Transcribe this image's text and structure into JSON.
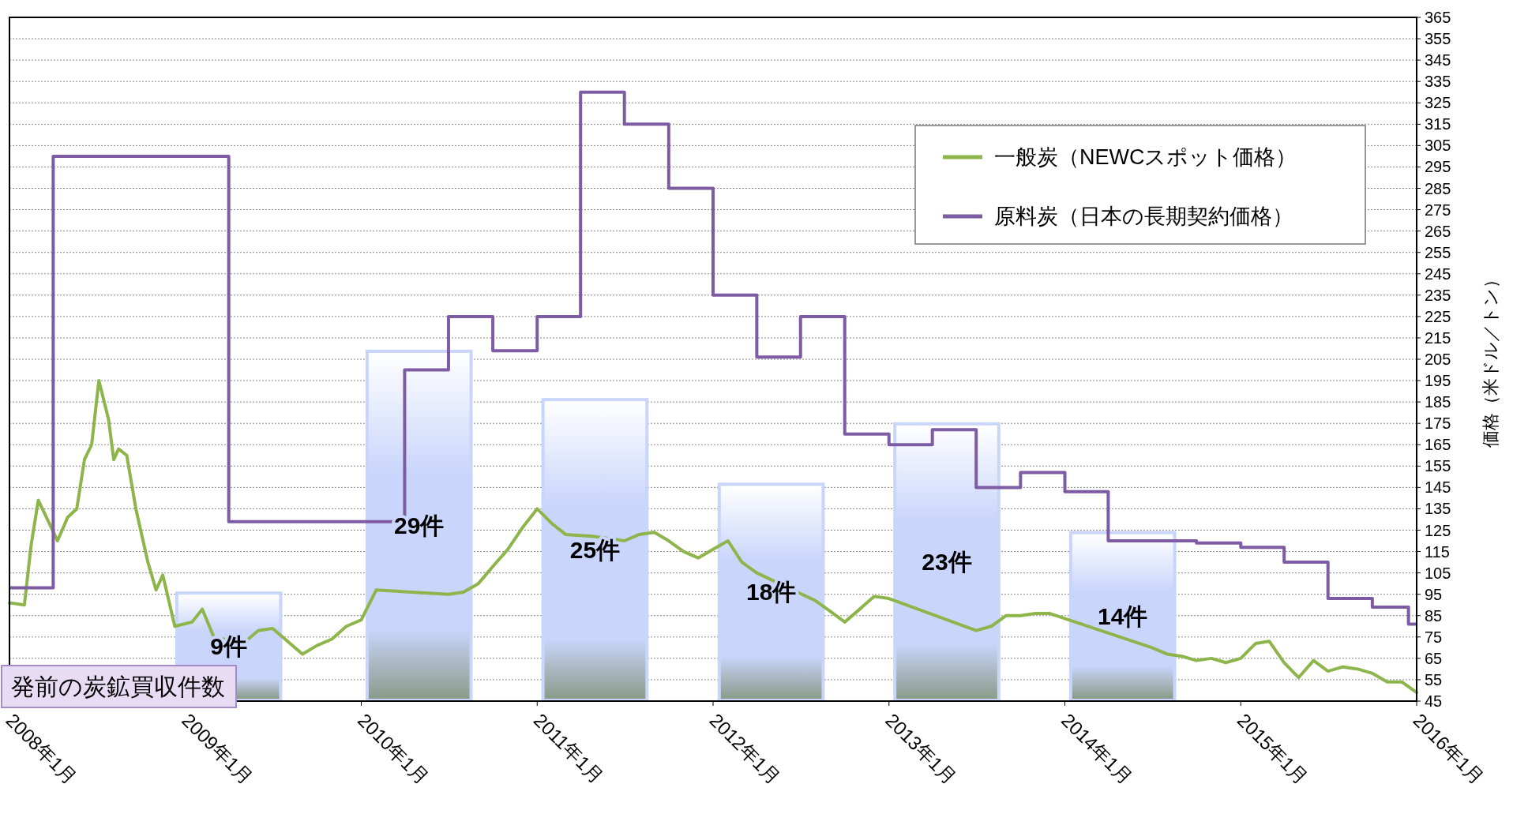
{
  "chart_data": {
    "type": "line",
    "ylabel": "価格（米ドル／トン）",
    "xlim": [
      "2008-01",
      "2016-01"
    ],
    "xticks": [
      {
        "value": "2008-01",
        "label": "2008年1月"
      },
      {
        "value": "2009-01",
        "label": "2009年1月"
      },
      {
        "value": "2010-01",
        "label": "2010年1月"
      },
      {
        "value": "2011-01",
        "label": "2011年1月"
      },
      {
        "value": "2012-01",
        "label": "2012年1月"
      },
      {
        "value": "2013-01",
        "label": "2013年1月"
      },
      {
        "value": "2014-01",
        "label": "2014年1月"
      },
      {
        "value": "2015-01",
        "label": "2015年1月"
      },
      {
        "value": "2016-01",
        "label": "2016年1月"
      }
    ],
    "ylim": [
      45,
      365
    ],
    "yticks": [
      45,
      55,
      65,
      75,
      85,
      95,
      105,
      115,
      125,
      135,
      145,
      155,
      165,
      175,
      185,
      195,
      205,
      215,
      225,
      235,
      245,
      255,
      265,
      275,
      285,
      295,
      305,
      315,
      325,
      335,
      345,
      355,
      365
    ],
    "grid": "y",
    "legend": "top right",
    "annotations": [
      "発前の炭鉱買収件数"
    ],
    "series": [
      {
        "type": "bar",
        "axis": "y2",
        "color": "#c9d5fb",
        "x": [
          "2009-04",
          "2010-05",
          "2011-05",
          "2012-05",
          "2013-05",
          "2014-05"
        ],
        "values": [
          9,
          29,
          25,
          18,
          23,
          14
        ],
        "value_labels": [
          "9件",
          "29件",
          "25件",
          "18件",
          "23件",
          "14件"
        ]
      },
      {
        "name": "一般炭（NEWCスポット価格）",
        "color": "#8db54b",
        "x": [
          "2008-01-01",
          "2008-02-01",
          "2008-02-15",
          "2008-03-01",
          "2008-03-20",
          "2008-04-10",
          "2008-05-01",
          "2008-05-20",
          "2008-06-05",
          "2008-06-20",
          "2008-07-05",
          "2008-07-25",
          "2008-08-05",
          "2008-08-15",
          "2008-09-01",
          "2008-09-20",
          "2008-10-15",
          "2008-11-01",
          "2008-11-15",
          "2008-12-10",
          "2009-01-15",
          "2009-02-05",
          "2009-03-01",
          "2009-05-01",
          "2009-06-01",
          "2009-07-01",
          "2009-08-01",
          "2009-09-01",
          "2009-10-01",
          "2009-11-01",
          "2009-12-01",
          "2010-01-01",
          "2010-02-01",
          "2010-07-01",
          "2010-08-01",
          "2010-09-01",
          "2010-10-01",
          "2010-11-01",
          "2010-12-01",
          "2011-01-01",
          "2011-02-01",
          "2011-03-01",
          "2011-05-01",
          "2011-07-01",
          "2011-08-01",
          "2011-09-01",
          "2011-10-01",
          "2011-11-01",
          "2011-12-01",
          "2012-01-01",
          "2012-02-01",
          "2012-03-01",
          "2012-04-01",
          "2012-08-01",
          "2012-09-01",
          "2012-10-01",
          "2012-11-01",
          "2012-12-01",
          "2013-01-01",
          "2013-07-01",
          "2013-08-01",
          "2013-09-01",
          "2013-10-01",
          "2013-11-01",
          "2013-12-01",
          "2014-07-01",
          "2014-08-01",
          "2014-09-01",
          "2014-10-01",
          "2014-11-01",
          "2014-12-01",
          "2015-01-01",
          "2015-02-01",
          "2015-03-01",
          "2015-04-01",
          "2015-05-01",
          "2015-06-01",
          "2015-07-01",
          "2015-08-01",
          "2015-09-01",
          "2015-10-01",
          "2015-11-01",
          "2015-12-01",
          "2016-01-01"
        ],
        "values": [
          91,
          90,
          118,
          139,
          130,
          120,
          131,
          135,
          158,
          165,
          195,
          177,
          158,
          163,
          160,
          135,
          110,
          97,
          104,
          80,
          82,
          88,
          75,
          72,
          78,
          79,
          73,
          67,
          71,
          74,
          80,
          83,
          97,
          95,
          96,
          100,
          108,
          116,
          126,
          135,
          128,
          123,
          122,
          120,
          123,
          124,
          120,
          115,
          112,
          116,
          120,
          110,
          105,
          92,
          87,
          82,
          88,
          94,
          93,
          78,
          80,
          85,
          85,
          86,
          86,
          70,
          67,
          66,
          64,
          65,
          63,
          65,
          72,
          73,
          63,
          56,
          64,
          59,
          61,
          60,
          58,
          54,
          54,
          49
        ]
      },
      {
        "type": "step",
        "name": "原料炭（日本の長期契約価格）",
        "color": "#7d5ca3",
        "x": [
          "2008-01",
          "2008-04",
          "2009-04",
          "2010-04",
          "2010-07",
          "2010-10",
          "2011-01",
          "2011-04",
          "2011-07",
          "2011-10",
          "2012-01",
          "2012-04",
          "2012-07",
          "2012-10",
          "2013-01",
          "2013-04",
          "2013-07",
          "2013-10",
          "2014-01",
          "2014-04",
          "2014-10",
          "2015-01",
          "2015-04",
          "2015-07",
          "2015-10",
          "2015-12-15",
          "2016-01"
        ],
        "values": [
          98,
          300,
          129,
          200,
          225,
          209,
          225,
          330,
          315,
          285,
          235,
          206,
          225,
          170,
          165,
          172,
          145,
          152,
          143,
          120,
          119,
          117,
          110,
          93,
          89,
          81,
          81
        ]
      }
    ]
  }
}
